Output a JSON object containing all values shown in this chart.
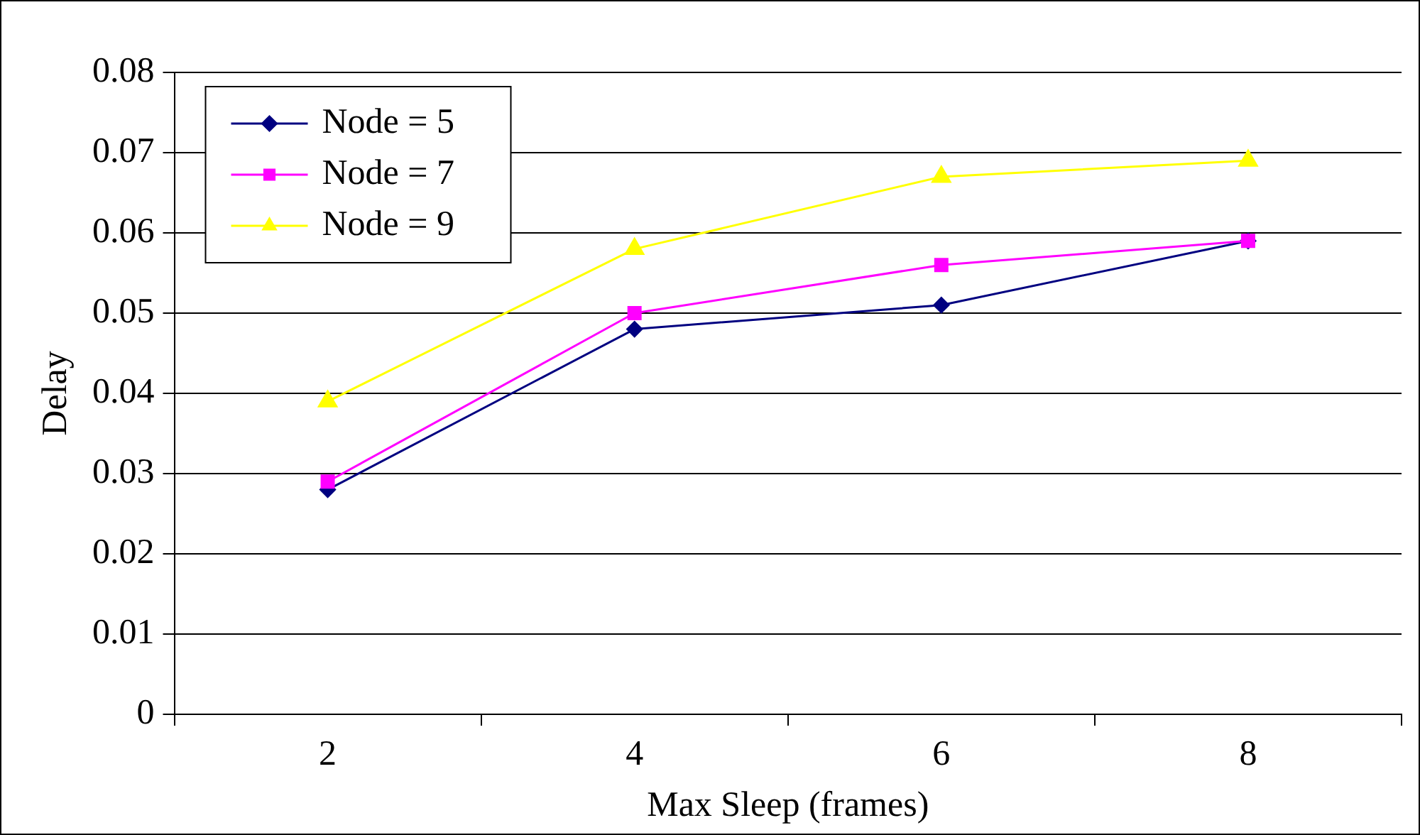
{
  "chart_data": {
    "type": "line",
    "xlabel": "Max Sleep (frames)",
    "ylabel": "Delay",
    "categories": [
      "2",
      "4",
      "6",
      "8"
    ],
    "series": [
      {
        "name": "Node = 5",
        "color": "#000080",
        "marker": "diamond",
        "values": [
          0.028,
          0.048,
          0.051,
          0.059
        ]
      },
      {
        "name": "Node = 7",
        "color": "#ff00ff",
        "marker": "square",
        "values": [
          0.029,
          0.05,
          0.056,
          0.059
        ]
      },
      {
        "name": "Node = 9",
        "color": "#ffff00",
        "marker": "triangle",
        "values": [
          0.039,
          0.058,
          0.067,
          0.069
        ]
      }
    ],
    "ylim": [
      0,
      0.08
    ],
    "yticks": [
      0,
      0.01,
      0.02,
      0.03,
      0.04,
      0.05,
      0.06,
      0.07,
      0.08
    ],
    "grid": "y",
    "legend": "top left",
    "line_style": "solid"
  }
}
